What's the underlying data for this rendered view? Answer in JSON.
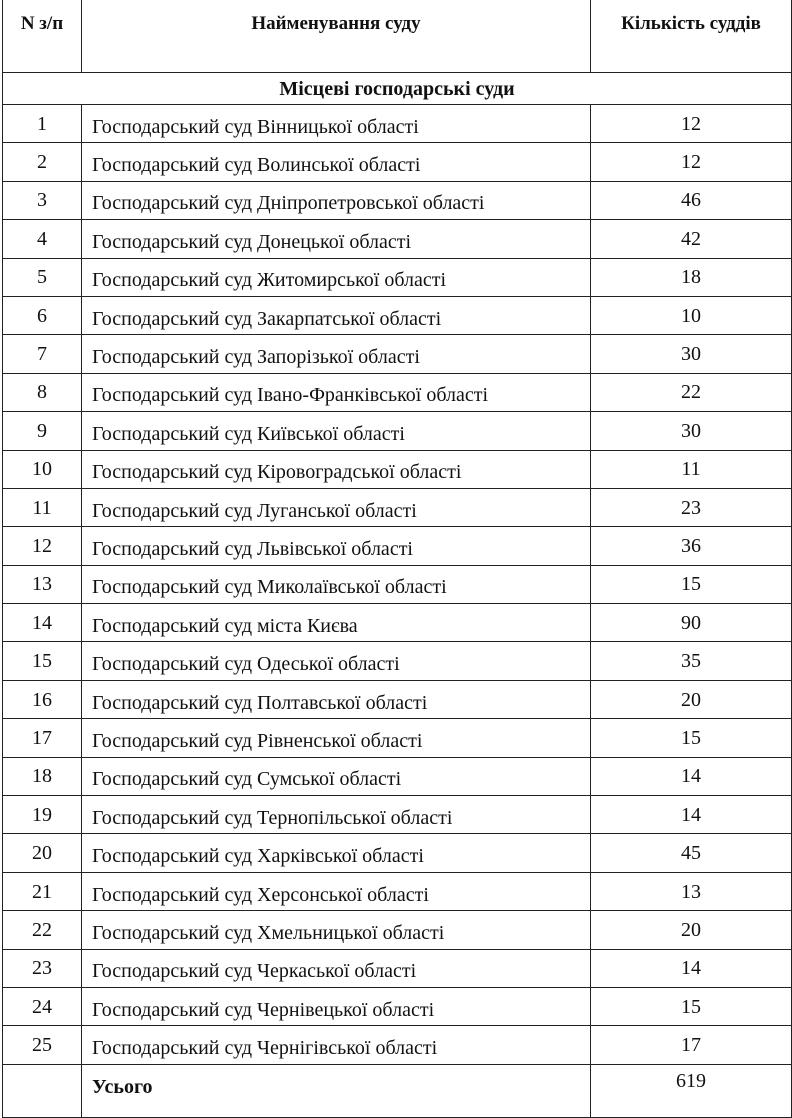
{
  "header": {
    "num": "N з/п",
    "name": "Найменування  суду",
    "count": "Кількість суддів"
  },
  "section_title": "Місцеві господарські суди",
  "rows": [
    {
      "num": "1",
      "name": "Господарський суд Вінницької області",
      "count": "12"
    },
    {
      "num": "2",
      "name": "Господарський суд Волинської області",
      "count": "12"
    },
    {
      "num": "3",
      "name": "Господарський суд Дніпропетровської області",
      "count": "46"
    },
    {
      "num": "4",
      "name": "Господарський суд Донецької області",
      "count": "42"
    },
    {
      "num": "5",
      "name": "Господарський суд Житомирської області",
      "count": "18"
    },
    {
      "num": "6",
      "name": "Господарський суд Закарпатської області",
      "count": "10"
    },
    {
      "num": "7",
      "name": "Господарський суд Запорізької області",
      "count": "30"
    },
    {
      "num": "8",
      "name": "Господарський суд Івано-Франківської області",
      "count": "22"
    },
    {
      "num": "9",
      "name": "Господарський суд Київської області",
      "count": "30"
    },
    {
      "num": "10",
      "name": "Господарський суд Кіровоградської області",
      "count": "11"
    },
    {
      "num": "11",
      "name": "Господарський суд Луганської області",
      "count": "23"
    },
    {
      "num": "12",
      "name": "Господарський суд Львівської області",
      "count": "36"
    },
    {
      "num": "13",
      "name": "Господарський суд Миколаївської області",
      "count": "15"
    },
    {
      "num": "14",
      "name": "Господарський суд міста Києва",
      "count": "90"
    },
    {
      "num": "15",
      "name": "Господарський суд Одеської області",
      "count": "35"
    },
    {
      "num": "16",
      "name": "Господарський суд Полтавської області",
      "count": "20"
    },
    {
      "num": "17",
      "name": "Господарський суд Рівненської області",
      "count": "15"
    },
    {
      "num": "18",
      "name": "Господарський суд Сумської області",
      "count": "14"
    },
    {
      "num": "19",
      "name": "Господарський суд Тернопільської області",
      "count": "14"
    },
    {
      "num": "20",
      "name": "Господарський суд Харківської області",
      "count": "45"
    },
    {
      "num": "21",
      "name": "Господарський суд Херсонської області",
      "count": "13"
    },
    {
      "num": "22",
      "name": "Господарський суд Хмельницької області",
      "count": "20"
    },
    {
      "num": "23",
      "name": "Господарський суд Черкаської області",
      "count": "14"
    },
    {
      "num": "24",
      "name": "Господарський суд Чернівецької області",
      "count": "15"
    },
    {
      "num": "25",
      "name": "Господарський суд Чернігівської області",
      "count": "17"
    }
  ],
  "total": {
    "label": "Усього",
    "count": "619"
  }
}
